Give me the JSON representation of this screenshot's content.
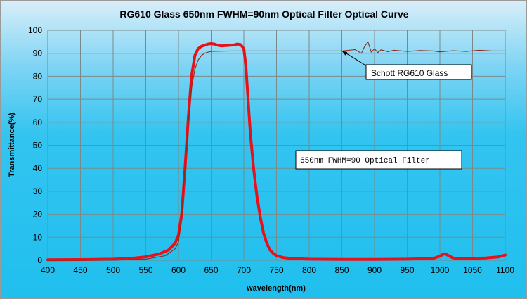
{
  "chart_data": {
    "type": "line",
    "title": "RG610 Glass 650nm FWHM=90nm Optical Filter Optical Curve",
    "xlabel": "wavelength(nm)",
    "ylabel": "Transmittance(%)",
    "xlim": [
      400,
      1100
    ],
    "ylim": [
      0,
      100
    ],
    "xticks": [
      400,
      450,
      500,
      550,
      600,
      650,
      700,
      750,
      800,
      850,
      900,
      950,
      1000,
      1050,
      1100
    ],
    "yticks": [
      0,
      10,
      20,
      30,
      40,
      50,
      60,
      70,
      80,
      90,
      100
    ],
    "grid": true,
    "colors": {
      "filter": "#e8111a",
      "glass": "#8b2a1a",
      "grid": "#7a8a8a"
    },
    "series": [
      {
        "name": "650nm FWHM=90 Optical Filter",
        "x": [
          400,
          450,
          500,
          530,
          550,
          570,
          585,
          595,
          600,
          605,
          610,
          615,
          620,
          625,
          630,
          635,
          640,
          645,
          650,
          655,
          660,
          665,
          670,
          675,
          680,
          685,
          690,
          695,
          700,
          703,
          706,
          710,
          715,
          720,
          725,
          730,
          735,
          740,
          745,
          750,
          760,
          770,
          780,
          800,
          850,
          900,
          950,
          990,
          1000,
          1005,
          1008,
          1012,
          1020,
          1030,
          1050,
          1070,
          1090,
          1100
        ],
        "y": [
          0.2,
          0.3,
          0.5,
          0.9,
          1.5,
          2.7,
          4.5,
          7.5,
          11,
          20,
          40,
          62,
          80,
          89,
          92,
          93,
          93.5,
          94,
          94.2,
          94,
          93.5,
          93.2,
          93.3,
          93.4,
          93.5,
          93.6,
          94,
          93.8,
          92,
          85,
          72,
          55,
          40,
          28,
          19,
          12,
          7.5,
          4.5,
          3,
          2,
          1.2,
          0.9,
          0.7,
          0.5,
          0.4,
          0.4,
          0.5,
          0.8,
          1.8,
          2.6,
          2.8,
          2.2,
          1.0,
          0.8,
          0.8,
          1.0,
          1.5,
          2.3
        ]
      },
      {
        "name": "Schott RG610 Glass",
        "x": [
          400,
          500,
          550,
          580,
          595,
          600,
          605,
          610,
          615,
          620,
          625,
          630,
          635,
          640,
          645,
          650,
          660,
          680,
          700,
          750,
          800,
          850,
          870,
          880,
          885,
          890,
          895,
          900,
          905,
          910,
          920,
          930,
          950,
          970,
          990,
          1000,
          1020,
          1040,
          1060,
          1080,
          1100
        ],
        "y": [
          0,
          0,
          0.5,
          2,
          5,
          8,
          20,
          40,
          60,
          75,
          83,
          87,
          89,
          90,
          90.5,
          90.8,
          90.9,
          91,
          91,
          91,
          91,
          91,
          91.6,
          90,
          93,
          95,
          90.5,
          92,
          90.3,
          91.5,
          90.7,
          91.3,
          90.8,
          91.2,
          91,
          90.6,
          91.1,
          90.8,
          91.3,
          91,
          91
        ]
      }
    ],
    "annotations": [
      {
        "text": "Schott RG610 Glass",
        "target_x": 850,
        "target_y": 91
      },
      {
        "text": "650nm FWHM=90 Optical Filter"
      }
    ]
  }
}
